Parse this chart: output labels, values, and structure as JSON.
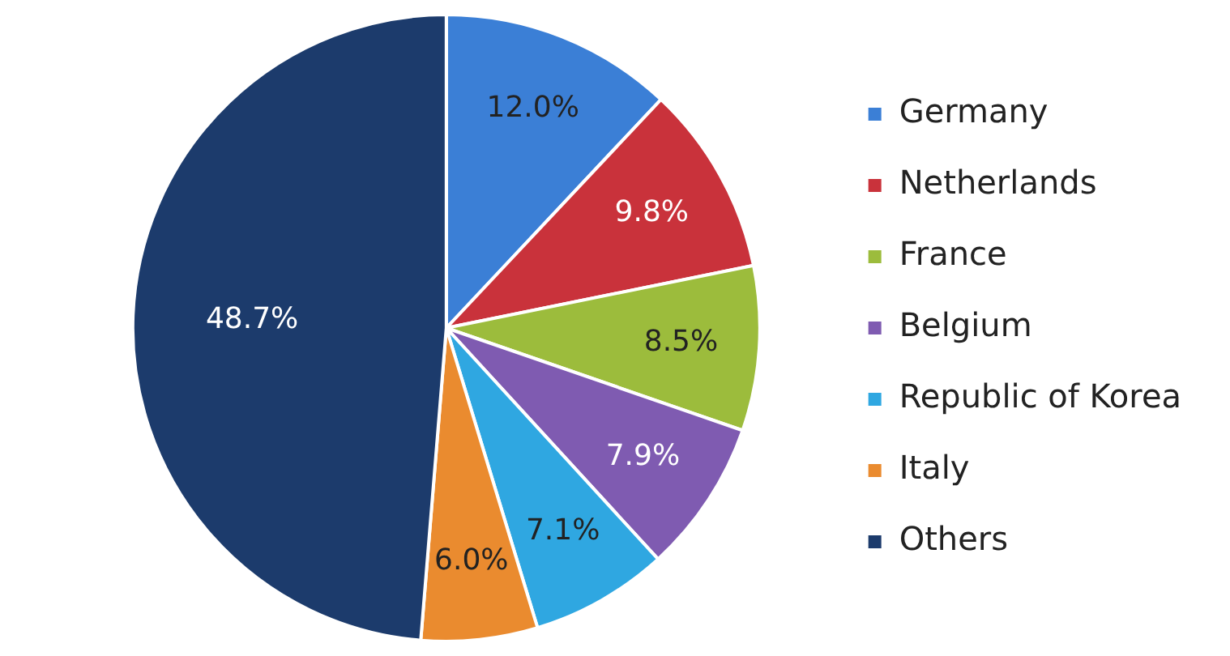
{
  "chart_data": {
    "type": "pie",
    "categories": [
      "Germany",
      "Netherlands",
      "France",
      "Belgium",
      "Republic of Korea",
      "Italy",
      "Others"
    ],
    "values": [
      12.0,
      9.8,
      8.5,
      7.9,
      7.1,
      6.0,
      48.7
    ],
    "value_labels": [
      "12.0%",
      "9.8%",
      "8.5%",
      "7.9%",
      "7.1%",
      "6.0%",
      "48.7%"
    ],
    "colors": [
      "#3b7fd6",
      "#c9323b",
      "#9cbc3c",
      "#7f5bb1",
      "#2fa7e1",
      "#ea8b2f",
      "#1c3b6c"
    ],
    "legend": "right"
  }
}
